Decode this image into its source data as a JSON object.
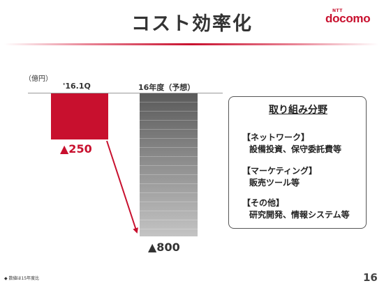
{
  "header": {
    "title": "コスト効率化",
    "brand": "docomo",
    "brand_small": "NTT",
    "brand_color": "#c8102e"
  },
  "chart_data": {
    "type": "bar",
    "unit_label": "（億円）",
    "categories": [
      "'16.1Q",
      "16年度（予想）"
    ],
    "values": [
      -250,
      -800
    ],
    "value_labels": [
      "▲250",
      "▲800"
    ],
    "colors": [
      "#c8102e",
      "#888888"
    ],
    "ylim": [
      -800,
      0
    ]
  },
  "panel": {
    "title": "取り組み分野",
    "groups": [
      {
        "head": "【ネットワーク】",
        "body": "設備投資、保守委託費等"
      },
      {
        "head": "【マーケティング】",
        "body": "販売ツール等"
      },
      {
        "head": "【その他】",
        "body": "研究開発、情報システム等"
      }
    ]
  },
  "footer": {
    "note": "◆ 数値は15年度比",
    "page": "16"
  }
}
